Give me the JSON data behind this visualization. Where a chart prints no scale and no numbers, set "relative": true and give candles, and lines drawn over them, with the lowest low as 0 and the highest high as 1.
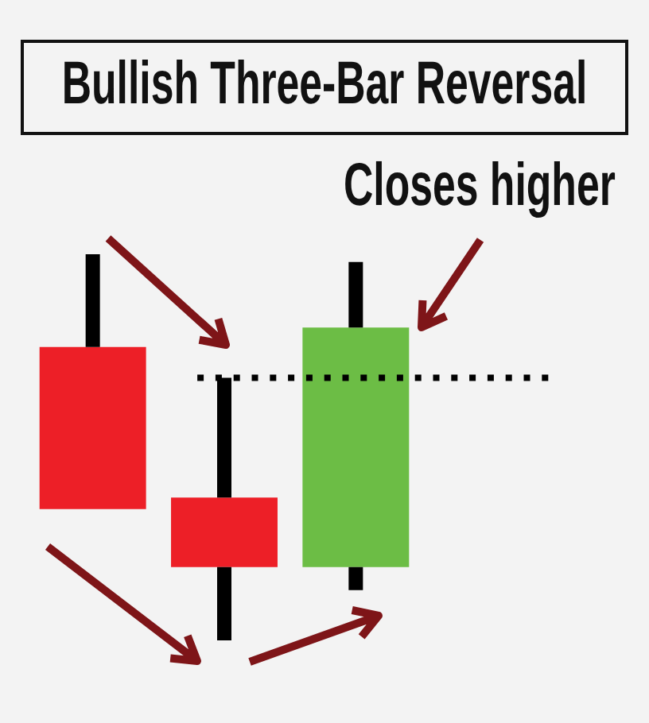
{
  "chart_data": {
    "type": "candlestick",
    "title": "Bullish Three-Bar Reversal",
    "annotations": [
      "Closes higher"
    ],
    "categories": [
      null,
      null,
      null
    ],
    "ohlc": [
      [
        0.76,
        1,
        0.34,
        0.34
      ],
      [
        0.37,
        0.68,
        0,
        0.19
      ],
      [
        0.19,
        0.98,
        0.13,
        0.81
      ]
    ],
    "relative": true,
    "colors": [
      "#ed1f27",
      "#ed1f27",
      "#6cbd45"
    ],
    "ref_lines": [
      {
        "axis": "y",
        "value": 0.68,
        "color": "#000000",
        "line_style": "dotted"
      }
    ]
  }
}
